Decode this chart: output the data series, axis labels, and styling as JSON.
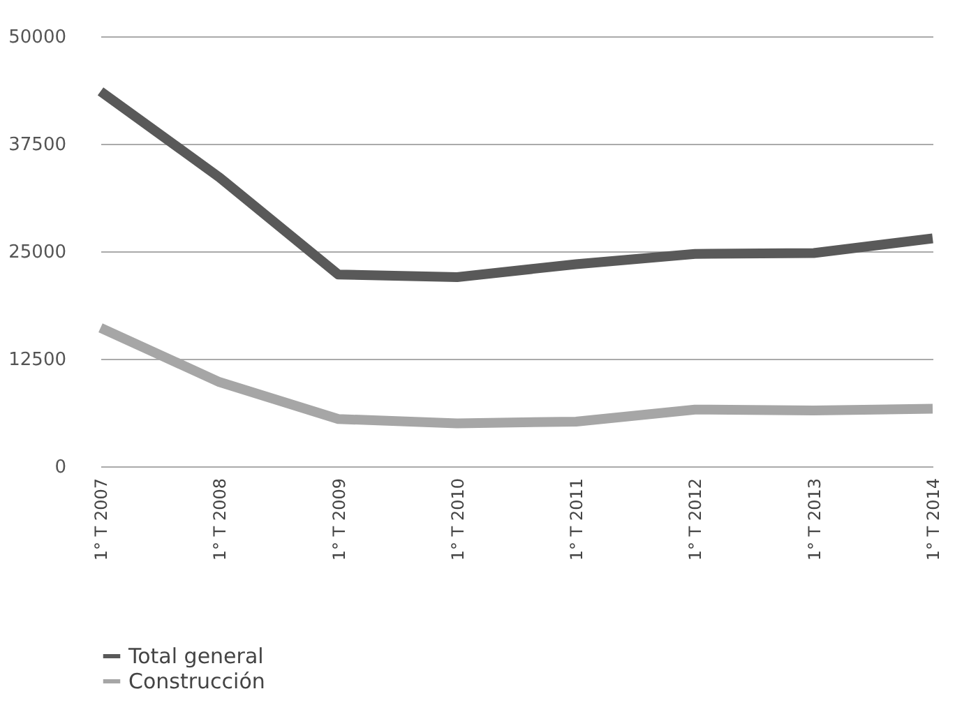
{
  "chart_data": {
    "type": "line",
    "categories": [
      "1° T 2007",
      "1° T 2008",
      "1° T 2009",
      "1° T 2010",
      "1° T 2011",
      "1° T 2012",
      "1° T 2013",
      "1° T 2014"
    ],
    "series": [
      {
        "name": "Total general",
        "color": "#595959",
        "values": [
          43600,
          33600,
          22300,
          22000,
          23500,
          24700,
          24800,
          26500
        ]
      },
      {
        "name": "Construcción",
        "color": "#a6a6a6",
        "values": [
          16100,
          9800,
          5500,
          5000,
          5200,
          6600,
          6500,
          6700
        ]
      }
    ],
    "ylim": [
      0,
      50000
    ],
    "yticks": [
      0,
      12500,
      25000,
      37500,
      50000
    ],
    "grid": "y",
    "legend": "bottom left",
    "marker": "none",
    "line_style": "solid"
  }
}
